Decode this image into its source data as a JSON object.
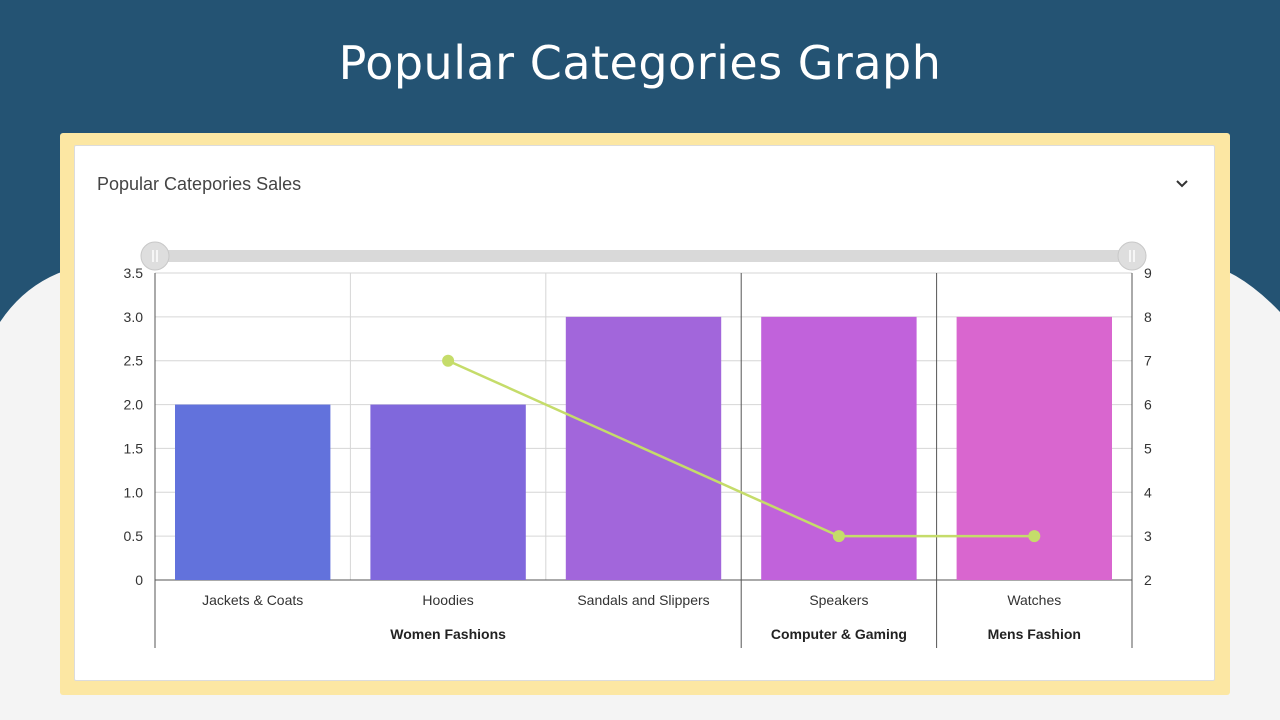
{
  "slide": {
    "title": "Popular Categories Graph"
  },
  "colors": {
    "header_bg": "#245373",
    "body_bg": "#f4f4f4",
    "frame": "#fce7a3",
    "line": "#c5dc6a",
    "bars": [
      "#6272dc",
      "#8068dc",
      "#a266db",
      "#c162db",
      "#d966cf"
    ]
  },
  "card": {
    "title": "Popular Catepories Sales",
    "collapse_icon": "chevron-down-icon"
  },
  "chart_data": {
    "type": "bar",
    "categories": [
      "Jackets & Coats",
      "Hoodies",
      "Sandals and Slippers",
      "Speakers",
      "Watches"
    ],
    "groups": [
      {
        "label": "Women Fashions",
        "span": 3
      },
      {
        "label": "Computer & Gaming",
        "span": 1
      },
      {
        "label": "Mens Fashion",
        "span": 1
      }
    ],
    "series": [
      {
        "type": "bar",
        "axis": "left",
        "values": [
          2,
          2,
          3,
          3,
          3
        ]
      },
      {
        "type": "line",
        "axis": "right",
        "values": [
          null,
          7,
          null,
          3,
          3
        ]
      }
    ],
    "y_left": {
      "range": [
        0,
        3.5
      ],
      "ticks": [
        "0",
        "0.5",
        "1.0",
        "1.5",
        "2.0",
        "2.5",
        "3.0",
        "3.5"
      ]
    },
    "y_right": {
      "range": [
        2,
        9
      ],
      "ticks": [
        "2",
        "3",
        "4",
        "5",
        "6",
        "7",
        "8",
        "9"
      ]
    },
    "grid": true,
    "range_slider": true
  }
}
